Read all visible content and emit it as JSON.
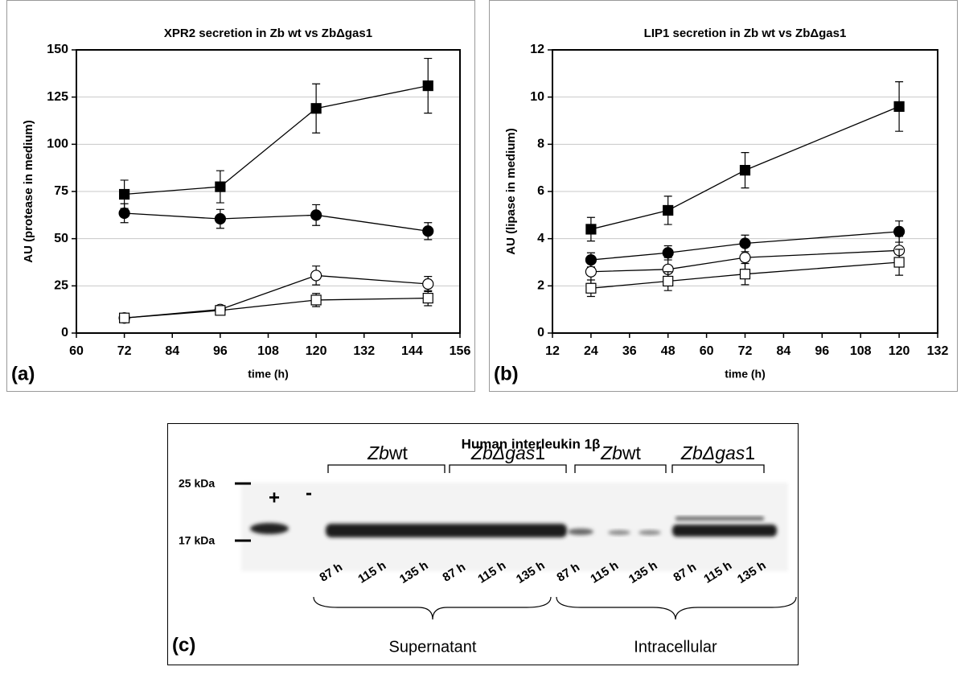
{
  "chart_data": [
    {
      "type": "line",
      "title": "XPR2 secretion in Zb wt vs ZbΔgas1",
      "panel_label": "(a)",
      "xlabel": "time (h)",
      "ylabel": "AU (protease in medium)",
      "x": [
        72,
        96,
        120,
        148
      ],
      "xlim": [
        60,
        156
      ],
      "xticks": [
        60,
        72,
        84,
        96,
        108,
        120,
        132,
        144,
        156
      ],
      "ylim": [
        0,
        150
      ],
      "yticks": [
        0,
        25,
        50,
        75,
        100,
        125,
        150
      ],
      "grid": true,
      "series": [
        {
          "color": "#000000",
          "marker": "square",
          "filled": true,
          "values": [
            73.5,
            77.5,
            119,
            131
          ],
          "errors": [
            7.5,
            8.5,
            13,
            14.5
          ]
        },
        {
          "color": "#000000",
          "marker": "circle",
          "filled": true,
          "values": [
            63.5,
            60.5,
            62.5,
            54
          ],
          "errors": [
            5,
            5,
            5.5,
            4.5
          ]
        },
        {
          "color": "#000000",
          "marker": "circle",
          "filled": false,
          "values": [
            8,
            12.5,
            30.5,
            26
          ],
          "errors": [
            2,
            2,
            5,
            4
          ]
        },
        {
          "color": "#000000",
          "marker": "square",
          "filled": false,
          "values": [
            8,
            12,
            17.5,
            18.5
          ],
          "errors": [
            2,
            2,
            3.5,
            4
          ]
        }
      ]
    },
    {
      "type": "line",
      "title": "LIP1 secretion in Zb wt vs ZbΔgas1",
      "panel_label": "(b)",
      "xlabel": "time (h)",
      "ylabel": "AU (lipase in medium)",
      "x": [
        24,
        48,
        72,
        120
      ],
      "xlim": [
        12,
        132
      ],
      "xticks": [
        12,
        24,
        36,
        48,
        60,
        72,
        84,
        96,
        108,
        120,
        132
      ],
      "ylim": [
        0,
        12
      ],
      "yticks": [
        0,
        2,
        4,
        6,
        8,
        10,
        12
      ],
      "grid": true,
      "series": [
        {
          "color": "#000000",
          "marker": "square",
          "filled": true,
          "values": [
            4.4,
            5.2,
            6.9,
            9.6
          ],
          "errors": [
            0.5,
            0.6,
            0.75,
            1.05
          ]
        },
        {
          "color": "#000000",
          "marker": "circle",
          "filled": true,
          "values": [
            3.1,
            3.4,
            3.8,
            4.3
          ],
          "errors": [
            0.3,
            0.3,
            0.35,
            0.45
          ]
        },
        {
          "color": "#000000",
          "marker": "circle",
          "filled": false,
          "values": [
            2.6,
            2.7,
            3.2,
            3.5
          ],
          "errors": [
            0.5,
            0.5,
            0.5,
            0.6
          ]
        },
        {
          "color": "#000000",
          "marker": "square",
          "filled": false,
          "values": [
            1.9,
            2.2,
            2.5,
            3.0
          ],
          "errors": [
            0.35,
            0.4,
            0.45,
            0.55
          ]
        }
      ]
    }
  ],
  "blot": {
    "title": "Human interleukin 1β",
    "panel_label": "(c)",
    "markers": [
      "25 kDa",
      "17 kDa"
    ],
    "controls": [
      "+",
      "-"
    ],
    "groups": [
      [
        "Zb",
        "wt"
      ],
      [
        "ZbΔgas",
        "1"
      ],
      [
        "Zb",
        "wt"
      ],
      [
        "ZbΔgas",
        "1"
      ]
    ],
    "lanes": [
      "87 h",
      "115 h",
      "135 h",
      "87 h",
      "115 h",
      "135 h",
      "87 h",
      "115 h",
      "135 h",
      "87 h",
      "115 h",
      "135 h"
    ],
    "fractions": [
      "Supernatant",
      "Intracellular"
    ]
  }
}
